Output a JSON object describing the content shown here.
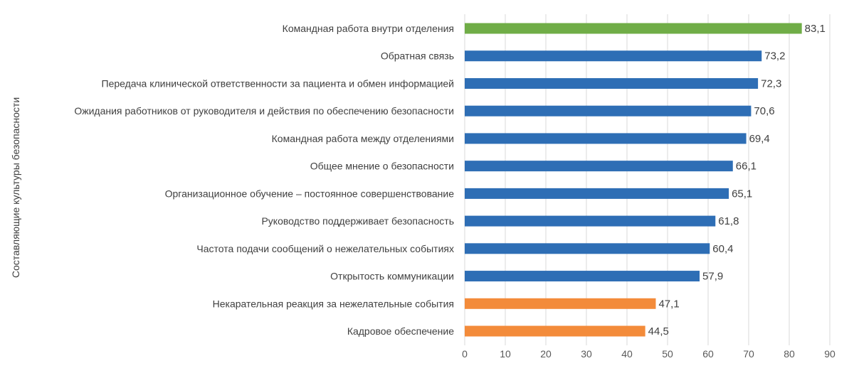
{
  "chart_data": {
    "type": "bar",
    "orientation": "horizontal",
    "ylabel": "Составляющие культуры безопасности",
    "xlabel": "",
    "xlim": [
      0,
      90
    ],
    "xticks": [
      0,
      10,
      20,
      30,
      40,
      50,
      60,
      70,
      80,
      90
    ],
    "grid": "vertical",
    "categories": [
      "Командная работа внутри отделения",
      "Обратная связь",
      "Передача клинической ответственности за пациента и обмен информацией",
      "Ожидания работников от руководителя и действия по обеспечению безопасности",
      "Командная работа между отделениями",
      "Общее мнение о безопасности",
      "Организационное обучение – постоянное совершенствование",
      "Руководство поддерживает безопасность",
      "Частота подачи сообщений о нежелательных событиях",
      "Открытость коммуникации",
      "Некарательная реакция за нежелательные события",
      "Кадровое обеспечение"
    ],
    "values": [
      83.1,
      73.2,
      72.3,
      70.6,
      69.4,
      66.1,
      65.1,
      61.8,
      60.4,
      57.9,
      47.1,
      44.5
    ],
    "value_labels": [
      "83,1",
      "73,2",
      "72,3",
      "70,6",
      "69,4",
      "66,1",
      "65,1",
      "61,8",
      "60,4",
      "57,9",
      "47,1",
      "44,5"
    ],
    "bar_colors": [
      "#70ad47",
      "#2e6eb5",
      "#2e6eb5",
      "#2e6eb5",
      "#2e6eb5",
      "#2e6eb5",
      "#2e6eb5",
      "#2e6eb5",
      "#2e6eb5",
      "#2e6eb5",
      "#f38b3a",
      "#f38b3a"
    ]
  }
}
